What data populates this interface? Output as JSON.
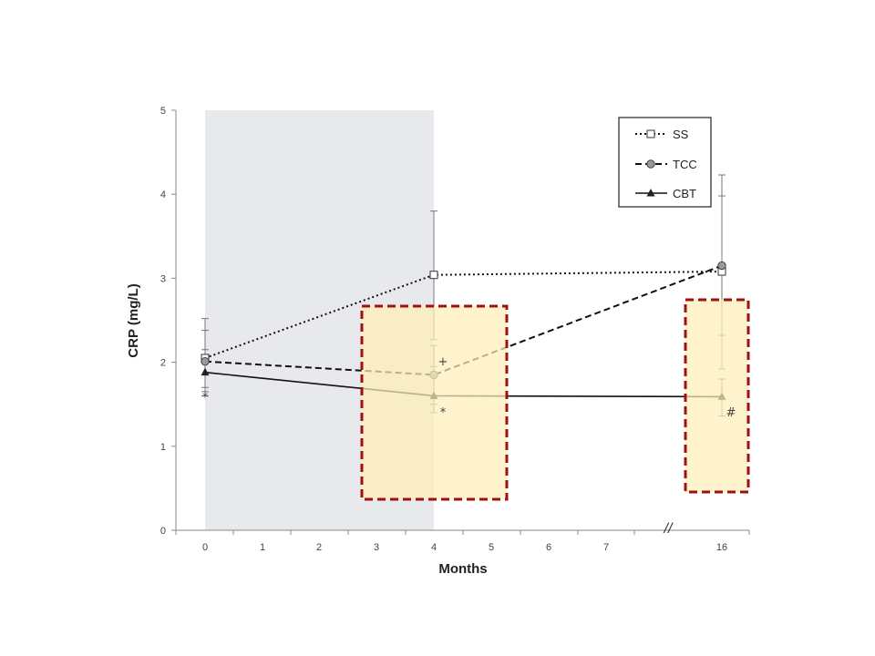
{
  "chart_data": {
    "type": "line",
    "title": "",
    "xlabel": "Months",
    "ylabel": "CRP (mg/L)",
    "ylim": [
      0,
      5
    ],
    "x_ticks": [
      "0",
      "1",
      "2",
      "3",
      "4",
      "5",
      "6",
      "7",
      "16"
    ],
    "y_ticks": [
      "0",
      "1",
      "2",
      "3",
      "4",
      "5"
    ],
    "axis_break_marker": "//",
    "grid": false,
    "legend_position": "top-right",
    "intervention_period": [
      0,
      4
    ],
    "highlight_months": [
      4,
      16
    ],
    "series": [
      {
        "name": "SS",
        "style": "dotted",
        "marker": "open-square",
        "x": [
          "0",
          "4",
          "16"
        ],
        "values": [
          2.05,
          3.04,
          3.08
        ],
        "error_upper": [
          2.52,
          3.8,
          4.23
        ],
        "error_lower": [
          1.65,
          2.27,
          1.92
        ]
      },
      {
        "name": "TCC",
        "style": "dashed",
        "marker": "gray-circle",
        "x": [
          "0",
          "4",
          "16"
        ],
        "values": [
          2.01,
          1.85,
          3.15
        ],
        "error_upper": [
          2.38,
          2.2,
          3.98
        ],
        "error_lower": [
          1.7,
          1.5,
          2.32
        ]
      },
      {
        "name": "CBT",
        "style": "solid",
        "marker": "filled-triangle",
        "x": [
          "0",
          "4",
          "16"
        ],
        "values": [
          1.88,
          1.6,
          1.59
        ],
        "error_upper": [
          2.15,
          1.95,
          1.8
        ],
        "error_lower": [
          1.6,
          1.4,
          1.36
        ]
      }
    ],
    "annotations": [
      {
        "text": "*",
        "x": "0",
        "y": 1.6
      },
      {
        "text": "+",
        "x": "4",
        "y": 2.03
      },
      {
        "text": "*",
        "x": "4",
        "y": 1.42
      },
      {
        "text": "#",
        "x": "16",
        "y": 1.42
      }
    ],
    "colors": {
      "shaded_region": "#e8e9ec",
      "highlight_fill": "#fdeeb8",
      "highlight_border": "#a30f0f",
      "line": "#111111",
      "error_bar": "#777777",
      "axis": "#888888"
    }
  }
}
